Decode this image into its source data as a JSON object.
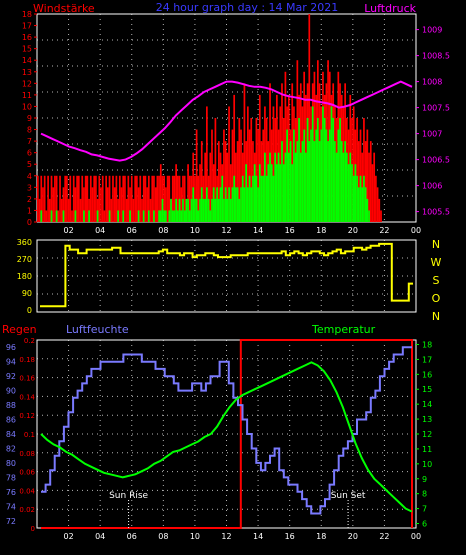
{
  "colors": {
    "background": "#000000",
    "frame": "#ffffff",
    "grid": "#ffffff",
    "wind_avg": "#00ff00",
    "wind_gust": "#ff0000",
    "pressure": "#ff00ff",
    "direction": "#ffff00",
    "rain": "#ff0000",
    "humidity": "#7a7aff",
    "temperature": "#00ff00",
    "temp_axis": "#00ff00",
    "humidity_axis": "#7a7aff",
    "rain_axis": "#ff0000",
    "sun_label": "#ffffff",
    "title_color": "#3a3aff"
  },
  "top_panel": {
    "title": "24 hour graph day : 14 Mar 2021",
    "left_label": "Windstärke",
    "right_label": "Luftdruck"
  },
  "middle_panel": {
    "compass_letters": [
      "N",
      "W",
      "S",
      "O",
      "N"
    ]
  },
  "bottom_panel": {
    "rain_label": "Regen",
    "humidity_label": "Luftfeuchte",
    "temperature_label": "Temperatur",
    "sun_rise_label": "Sun Rise",
    "sun_set_label": "Sun Set"
  },
  "chart_data": [
    {
      "type": "bar",
      "name": "wind",
      "x_ticks": [
        "02",
        "04",
        "06",
        "08",
        "10",
        "12",
        "14",
        "16",
        "18",
        "20",
        "22",
        "00"
      ],
      "y_ticks": [
        "0",
        "1",
        "2",
        "3",
        "4",
        "5",
        "6",
        "7",
        "8",
        "9",
        "10",
        "11",
        "12",
        "13",
        "14",
        "15",
        "16",
        "17",
        "18"
      ],
      "ylim": [
        0,
        18
      ],
      "xlim": [
        0,
        24
      ],
      "series": [
        {
          "role": "gust",
          "values": [
            4,
            2,
            4,
            3,
            4,
            1,
            4,
            2,
            4,
            3,
            4,
            4,
            1,
            4,
            2,
            3,
            4,
            4,
            2,
            4,
            1,
            4,
            3,
            4,
            4,
            2,
            4,
            3,
            4,
            4,
            2,
            4,
            3,
            4,
            4,
            2,
            4,
            3,
            4,
            1,
            4,
            3,
            4,
            2,
            4,
            3,
            4,
            2,
            4,
            3,
            4,
            4,
            2,
            4,
            3,
            4,
            2,
            4,
            4,
            3,
            4,
            2,
            4,
            4,
            3,
            4,
            2,
            4,
            4,
            3,
            4,
            4,
            5,
            4,
            4,
            3,
            4,
            4,
            2,
            4,
            4,
            5,
            4,
            4,
            3,
            4,
            4,
            2,
            5,
            4,
            4,
            6,
            4,
            8,
            4,
            5,
            7,
            4,
            6,
            10,
            4,
            6,
            8,
            5,
            9,
            4,
            7,
            6,
            5,
            8,
            7,
            6,
            10,
            5,
            8,
            11,
            6,
            7,
            9,
            8,
            6,
            12,
            7,
            10,
            8,
            9,
            7,
            6,
            9,
            8,
            11,
            7,
            8,
            10,
            9,
            7,
            12,
            8,
            10,
            9,
            11,
            8,
            10,
            12,
            9,
            13,
            10,
            11,
            8,
            12,
            10,
            9,
            14,
            11,
            12,
            10,
            13,
            11,
            12,
            18,
            10,
            12,
            13,
            11,
            14,
            12,
            10,
            13,
            11,
            12,
            14,
            13,
            11,
            12,
            10,
            9,
            13,
            12,
            11,
            10,
            12,
            9,
            8,
            11,
            9,
            10,
            8,
            9,
            7,
            8,
            6,
            9,
            7,
            8,
            6,
            7,
            5,
            6,
            4,
            3,
            2,
            1,
            0,
            0,
            0,
            0,
            0,
            0,
            0,
            0,
            0,
            0,
            0,
            0,
            0,
            0,
            0,
            0,
            0,
            0,
            0,
            0
          ]
        },
        {
          "role": "average",
          "values": [
            0,
            0,
            1,
            0,
            0,
            0,
            0,
            0,
            1,
            0,
            0,
            1,
            0,
            0,
            0,
            1,
            0,
            0,
            0,
            0,
            0,
            0,
            1,
            0,
            0,
            0,
            0,
            1,
            0,
            0,
            1,
            0,
            0,
            0,
            0,
            1,
            0,
            0,
            0,
            0,
            0,
            0,
            1,
            0,
            0,
            0,
            0,
            1,
            0,
            0,
            1,
            0,
            0,
            0,
            1,
            0,
            0,
            0,
            0,
            1,
            0,
            0,
            1,
            0,
            0,
            1,
            0,
            0,
            1,
            0,
            0,
            1,
            1,
            2,
            1,
            1,
            0,
            1,
            2,
            1,
            1,
            2,
            1,
            2,
            1,
            2,
            1,
            2,
            2,
            1,
            2,
            3,
            2,
            2,
            1,
            2,
            3,
            2,
            2,
            3,
            2,
            1,
            2,
            3,
            2,
            3,
            2,
            3,
            4,
            2,
            3,
            2,
            3,
            2,
            3,
            4,
            3,
            3,
            2,
            3,
            4,
            3,
            5,
            3,
            4,
            3,
            4,
            5,
            4,
            3,
            5,
            4,
            4,
            6,
            4,
            5,
            6,
            5,
            4,
            6,
            5,
            6,
            5,
            7,
            5,
            6,
            8,
            6,
            7,
            5,
            8,
            6,
            7,
            9,
            6,
            7,
            8,
            6,
            9,
            7,
            8,
            10,
            7,
            8,
            9,
            7,
            8,
            10,
            9,
            8,
            7,
            8,
            10,
            9,
            7,
            6,
            8,
            9,
            7,
            6,
            7,
            6,
            5,
            6,
            5,
            4,
            5,
            4,
            3,
            4,
            3,
            4,
            3,
            2,
            1,
            0,
            0,
            0,
            0,
            0,
            0,
            0,
            0,
            0,
            0,
            0,
            0,
            0,
            0,
            0,
            0,
            0,
            0,
            0,
            0,
            0,
            0
          ]
        },
        {
          "name": "Luftdruck",
          "axis": "right",
          "ylim": [
            1005.3,
            1009.3
          ],
          "y_ticks": [
            "1005.5",
            "1006",
            "1006.5",
            "1007",
            "1007.5",
            "1008",
            "1008.5",
            "1009"
          ],
          "values": [
            1007.0,
            1006.95,
            1006.9,
            1006.85,
            1006.8,
            1006.75,
            1006.72,
            1006.68,
            1006.65,
            1006.6,
            1006.58,
            1006.55,
            1006.52,
            1006.5,
            1006.48,
            1006.5,
            1006.55,
            1006.62,
            1006.7,
            1006.8,
            1006.9,
            1007.0,
            1007.1,
            1007.22,
            1007.35,
            1007.45,
            1007.55,
            1007.65,
            1007.72,
            1007.8,
            1007.85,
            1007.9,
            1007.95,
            1008.0,
            1008.0,
            1007.98,
            1007.95,
            1007.92,
            1007.9,
            1007.9,
            1007.88,
            1007.85,
            1007.8,
            1007.75,
            1007.72,
            1007.7,
            1007.68,
            1007.65,
            1007.65,
            1007.62,
            1007.6,
            1007.58,
            1007.55,
            1007.5,
            1007.52,
            1007.55,
            1007.6,
            1007.65,
            1007.7,
            1007.75,
            1007.8,
            1007.85,
            1007.9,
            1007.95,
            1008.0,
            1007.95,
            1007.9
          ]
        }
      ]
    },
    {
      "type": "line",
      "name": "direction",
      "ylim": [
        0,
        360
      ],
      "y_ticks": [
        "0",
        "90",
        "180",
        "270",
        "360"
      ],
      "xlim": [
        0,
        24
      ],
      "values": [
        20,
        20,
        20,
        20,
        20,
        20,
        340,
        320,
        320,
        300,
        300,
        320,
        320,
        320,
        320,
        320,
        320,
        330,
        330,
        300,
        300,
        300,
        300,
        300,
        300,
        300,
        300,
        300,
        310,
        320,
        300,
        300,
        300,
        290,
        300,
        300,
        280,
        290,
        290,
        300,
        300,
        290,
        280,
        280,
        280,
        290,
        290,
        290,
        290,
        300,
        300,
        300,
        300,
        300,
        300,
        300,
        300,
        310,
        290,
        300,
        310,
        300,
        290,
        300,
        310,
        310,
        300,
        290,
        300,
        310,
        320,
        300,
        310,
        310,
        330,
        330,
        320,
        330,
        340,
        340,
        350,
        350,
        350,
        50,
        50,
        50,
        50,
        140,
        140
      ]
    },
    {
      "type": "line",
      "name": "bottom",
      "x_ticks": [
        "02",
        "04",
        "06",
        "08",
        "10",
        "12",
        "14",
        "16",
        "18",
        "20",
        "22",
        "00"
      ],
      "xlim": [
        0,
        24
      ],
      "series": [
        {
          "name": "Regen",
          "axis": "left-inner",
          "ylim": [
            0,
            0.2
          ],
          "y_ticks": [
            "0",
            "0.02",
            "0.04",
            "0.06",
            "0.08",
            "0.1",
            "0.12",
            "0.14",
            "0.16",
            "0.18",
            "0.2"
          ],
          "values": [
            0,
            0,
            0,
            0,
            0,
            0,
            0,
            0,
            0,
            0,
            0,
            0,
            0,
            0,
            0.2,
            0.2,
            0.2,
            0.2,
            0.2,
            0.2,
            0.2,
            0.2,
            0.2,
            0.2,
            0.2,
            0.2,
            0
          ]
        },
        {
          "name": "Luftfeuchte",
          "axis": "left-outer",
          "ylim": [
            71,
            97
          ],
          "y_ticks": [
            "72",
            "74",
            "76",
            "78",
            "80",
            "82",
            "84",
            "86",
            "88",
            "90",
            "92",
            "94",
            "96"
          ],
          "values": [
            76,
            77,
            79,
            81,
            83,
            85,
            87,
            89,
            90,
            91,
            92,
            93,
            93,
            94,
            94,
            94,
            94,
            94,
            95,
            95,
            95,
            95,
            94,
            94,
            94,
            93,
            93,
            92,
            92,
            91,
            90,
            90,
            90,
            91,
            91,
            90,
            91,
            92,
            92,
            94,
            94,
            91,
            89,
            88,
            86,
            84,
            82,
            80,
            79,
            80,
            81,
            82,
            79,
            78,
            77,
            77,
            76,
            75,
            74,
            73,
            73,
            74,
            75,
            77,
            79,
            81,
            82,
            83,
            84,
            86,
            86,
            87,
            89,
            90,
            92,
            93,
            94,
            95,
            95,
            96,
            96,
            96
          ]
        },
        {
          "name": "Temperatur",
          "axis": "right",
          "ylim": [
            5.7,
            18.3
          ],
          "y_ticks": [
            "6",
            "7",
            "8",
            "9",
            "10",
            "11",
            "12",
            "13",
            "14",
            "15",
            "16",
            "17",
            "18"
          ],
          "values": [
            12.0,
            11.6,
            11.3,
            11.1,
            10.8,
            10.6,
            10.3,
            10.0,
            9.8,
            9.6,
            9.4,
            9.3,
            9.2,
            9.1,
            9.2,
            9.3,
            9.5,
            9.7,
            10.0,
            10.2,
            10.5,
            10.8,
            10.9,
            11.1,
            11.3,
            11.5,
            11.8,
            12.0,
            12.5,
            13.2,
            13.8,
            14.3,
            14.6,
            14.8,
            15.0,
            15.2,
            15.4,
            15.6,
            15.8,
            16.0,
            16.2,
            16.4,
            16.6,
            16.8,
            16.6,
            16.2,
            15.6,
            14.8,
            13.8,
            12.6,
            11.4,
            10.4,
            9.6,
            9.0,
            8.6,
            8.2,
            7.8,
            7.4,
            7.0,
            6.8
          ]
        }
      ],
      "sun_rise_x": 5.8,
      "sun_set_x": 19.7
    }
  ]
}
